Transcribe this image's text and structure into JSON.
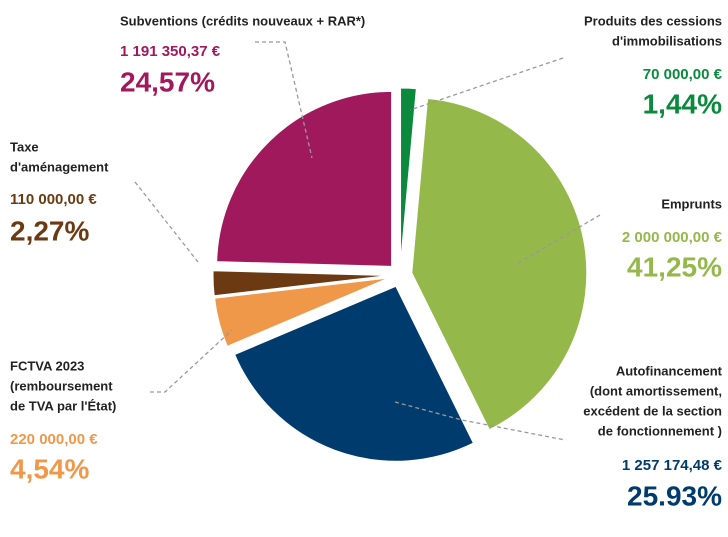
{
  "chart_data": {
    "type": "pie",
    "labels": [
      [
        "Produits des cessions",
        "d'immobilisations"
      ],
      [
        "Emprunts"
      ],
      [
        "Autofinancement",
        "(dont amortissement,",
        "excédent de la section",
        "de fonctionnement )"
      ],
      [
        "FCTVA 2023",
        "(remboursement",
        "de TVA par l'État)"
      ],
      [
        "Taxe",
        "d'aménagement"
      ],
      [
        "Subventions (crédits nouveaux + RAR*)"
      ]
    ],
    "values": [
      1.44,
      41.25,
      25.93,
      4.54,
      2.27,
      24.57
    ],
    "value_labels": [
      "1,44%",
      "41,25%",
      "25.93%",
      "4,54%",
      "2,27%",
      "24,57%"
    ],
    "amounts": [
      70000,
      2000000,
      1257174.48,
      220000,
      110000,
      1191350.37
    ],
    "amount_labels": [
      "70 000,00 €",
      "2 000 000,00 €",
      "1 257 174,48 €",
      "220 000,00 €",
      "110 000,00 €",
      "1 191 350,37 €"
    ],
    "colors": [
      "#0b8a3e",
      "#95b84a",
      "#003b6d",
      "#f0984a",
      "#6b3a12",
      "#a0195c"
    ]
  }
}
